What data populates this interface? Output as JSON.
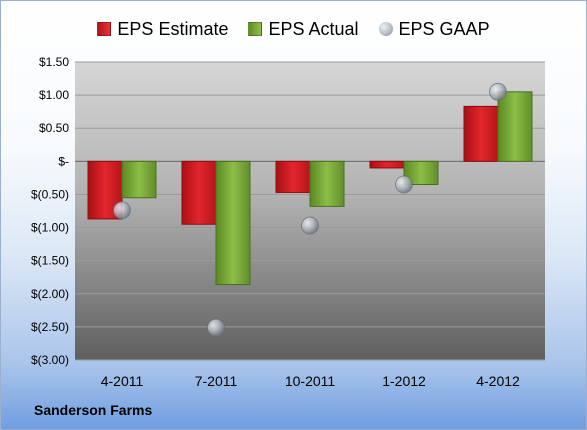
{
  "chart_data": {
    "type": "bar",
    "categories": [
      "4-2011",
      "7-2011",
      "10-2011",
      "1-2012",
      "4-2012"
    ],
    "series": [
      {
        "name": "EPS Estimate",
        "kind": "bar",
        "values": [
          -0.87,
          -0.95,
          -0.47,
          -0.1,
          0.83
        ]
      },
      {
        "name": "EPS Actual",
        "kind": "bar",
        "values": [
          -0.55,
          -1.86,
          -0.68,
          -0.35,
          1.05
        ]
      },
      {
        "name": "EPS GAAP",
        "kind": "marker",
        "values": [
          -0.74,
          -2.51,
          -0.97,
          -0.35,
          1.05
        ]
      }
    ],
    "ylim": [
      -3.0,
      1.5
    ],
    "yticks": [
      1.5,
      1.0,
      0.5,
      0.0,
      -0.5,
      -1.0,
      -1.5,
      -2.0,
      -2.5,
      -3.0
    ],
    "ytick_labels": [
      "$1.50",
      "$1.00",
      "$0.50",
      "$-",
      "$(0.50)",
      "$(1.00)",
      "$(1.50)",
      "$(2.00)",
      "$(2.50)",
      "$(3.00)"
    ],
    "legend_position": "top",
    "colors": {
      "estimate": "#d81e24",
      "actual": "#7eae3c",
      "gaap": "#a9aeb5"
    }
  },
  "company": "Sanderson Farms"
}
